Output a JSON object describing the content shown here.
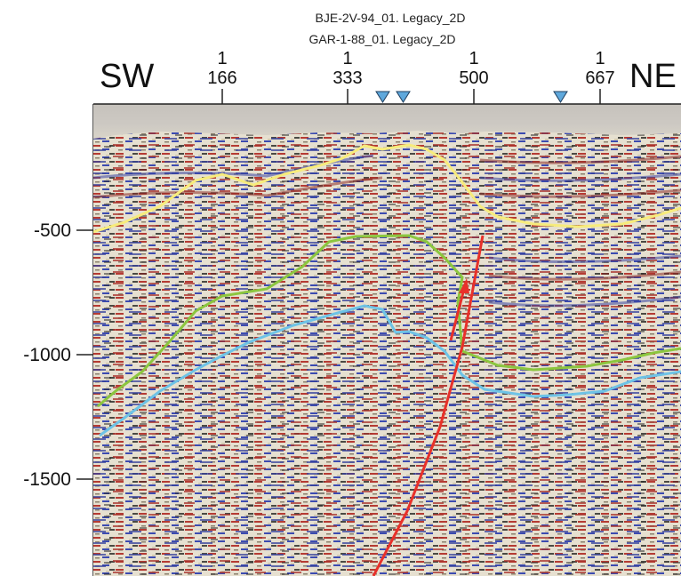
{
  "lines": [
    "BJE-2V-94_01. Legacy_2D",
    "GAR-1-88_01. Legacy_2D"
  ],
  "direction": {
    "left": "SW",
    "right": "NE"
  },
  "cdp_ticks": [
    {
      "top": "1",
      "bottom": "166"
    },
    {
      "top": "1",
      "bottom": "333"
    },
    {
      "top": "1",
      "bottom": "500"
    },
    {
      "top": "1",
      "bottom": "667"
    }
  ],
  "depth_ticks": [
    "-500",
    "-1000",
    "-1500"
  ],
  "horizons": [
    {
      "name": "yellow",
      "color": "#f7ec7c"
    },
    {
      "name": "green",
      "color": "#8cc63f"
    },
    {
      "name": "blue",
      "color": "#6ec3e6"
    }
  ],
  "fault_color": "#e8312a",
  "marker_color": "#5fa8dc",
  "colors": {
    "seismic_red": "#b83a32",
    "seismic_blue": "#3f4fb0",
    "seismic_bg": "#e8e2d2",
    "top_band": "#cbc8c2"
  }
}
